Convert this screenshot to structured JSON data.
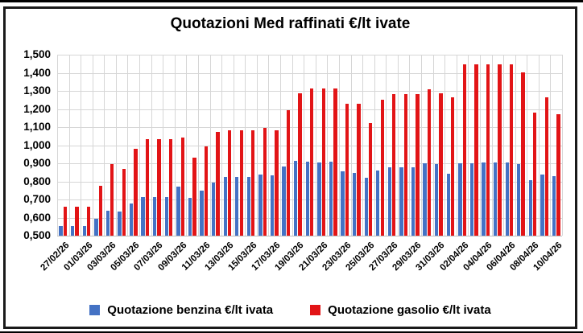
{
  "chart_data": {
    "type": "bar",
    "title": "Quotazioni Med raffinati €/lt ivate",
    "ylabel": "",
    "xlabel": "",
    "ylim": [
      0.5,
      1.5
    ],
    "grid": true,
    "legend_position": "bottom",
    "y_tick_labels": [
      "1,500",
      "1,400",
      "1,300",
      "1,200",
      "1,100",
      "1,000",
      "0,900",
      "0,800",
      "0,700",
      "0,600",
      "0,500"
    ],
    "x_tick_labels": [
      "27/02/26",
      "01/03/26",
      "03/03/26",
      "05/03/26",
      "07/03/26",
      "09/03/26",
      "11/03/26",
      "13/03/26",
      "15/03/26",
      "17/03/26",
      "19/03/26",
      "21/03/26",
      "23/03/26",
      "25/03/26",
      "27/03/26",
      "29/03/26",
      "31/03/26",
      "02/04/26",
      "04/04/26",
      "06/04/26",
      "08/04/26",
      "10/04/26"
    ],
    "x_tick_step": 2,
    "categories": [
      "27/02/26",
      "28/02/26",
      "01/03/26",
      "02/03/26",
      "03/03/26",
      "04/03/26",
      "05/03/26",
      "06/03/26",
      "07/03/26",
      "08/03/26",
      "09/03/26",
      "10/03/26",
      "11/03/26",
      "12/03/26",
      "13/03/26",
      "14/03/26",
      "15/03/26",
      "16/03/26",
      "17/03/26",
      "18/03/26",
      "19/03/26",
      "20/03/26",
      "21/03/26",
      "22/03/26",
      "23/03/26",
      "24/03/26",
      "25/03/26",
      "26/03/26",
      "27/03/26",
      "28/03/26",
      "29/03/26",
      "30/03/26",
      "31/03/26",
      "01/04/26",
      "02/04/26",
      "03/04/26",
      "04/04/26",
      "05/04/26",
      "06/04/26",
      "07/04/26",
      "08/04/26",
      "09/04/26",
      "10/04/26"
    ],
    "series": [
      {
        "name": "Quotazione benzina €/lt ivata",
        "color": "#4472C4",
        "values": [
          0.555,
          0.555,
          0.555,
          0.595,
          0.64,
          0.635,
          0.68,
          0.712,
          0.712,
          0.712,
          0.77,
          0.71,
          0.747,
          0.795,
          0.823,
          0.823,
          0.823,
          0.839,
          0.835,
          0.884,
          0.912,
          0.908,
          0.904,
          0.907,
          0.856,
          0.845,
          0.818,
          0.86,
          0.878,
          0.878,
          0.878,
          0.9,
          0.896,
          0.844,
          0.9,
          0.9,
          0.903,
          0.903,
          0.903,
          0.897,
          0.808,
          0.836,
          0.829
        ]
      },
      {
        "name": "Quotazione gasolio €/lt ivata",
        "color": "#E21416",
        "values": [
          0.66,
          0.66,
          0.66,
          0.775,
          0.895,
          0.87,
          0.98,
          1.033,
          1.033,
          1.033,
          1.044,
          0.93,
          0.993,
          1.073,
          1.082,
          1.082,
          1.081,
          1.095,
          1.081,
          1.192,
          1.285,
          1.315,
          1.315,
          1.315,
          1.23,
          1.23,
          1.122,
          1.253,
          1.282,
          1.281,
          1.281,
          1.307,
          1.285,
          1.263,
          1.448,
          1.448,
          1.448,
          1.448,
          1.448,
          1.401,
          1.18,
          1.263,
          1.173
        ]
      }
    ],
    "gridline_color": "#d6d6d6"
  }
}
